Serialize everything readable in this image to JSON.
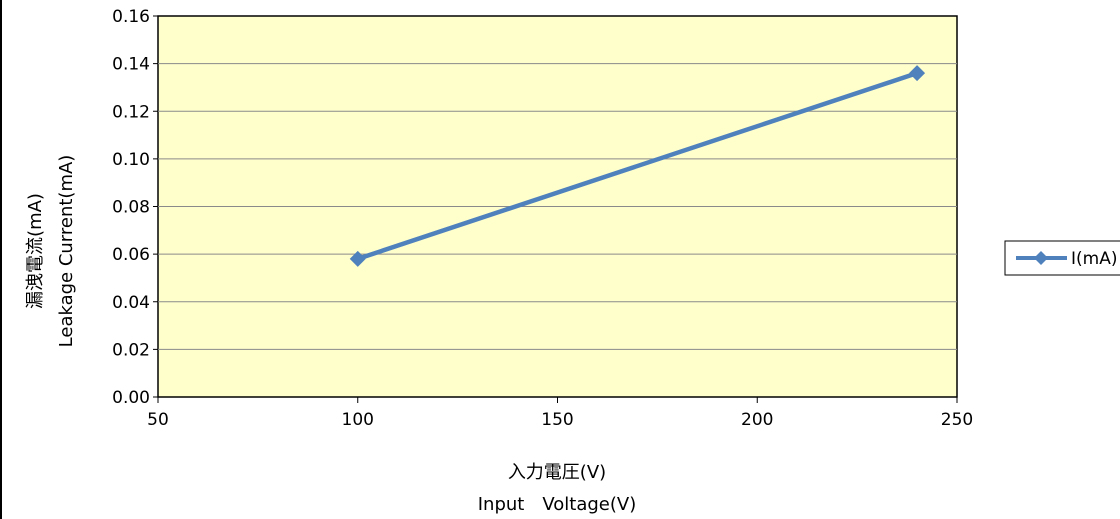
{
  "chart_data": {
    "type": "line",
    "x": [
      100,
      240
    ],
    "series": [
      {
        "name": "I(mA)",
        "values": [
          0.058,
          0.136
        ],
        "color": "#4F81BD",
        "marker": "diamond"
      }
    ],
    "xlabel": [
      "入力電圧(V)",
      "Input　Voltage(V)"
    ],
    "ylabel": [
      "漏洩電流(mA)",
      "Leakage Current(mA)"
    ],
    "xlim": [
      50,
      250
    ],
    "ylim": [
      0,
      0.16
    ],
    "xticks": [
      "50",
      "100",
      "150",
      "200",
      "250"
    ],
    "yticks": [
      "0.00",
      "0.02",
      "0.04",
      "0.06",
      "0.08",
      "0.10",
      "0.12",
      "0.14",
      "0.16"
    ],
    "grid": "horizontal",
    "plot_background": "#FFFFCC",
    "legend_position": "right"
  }
}
